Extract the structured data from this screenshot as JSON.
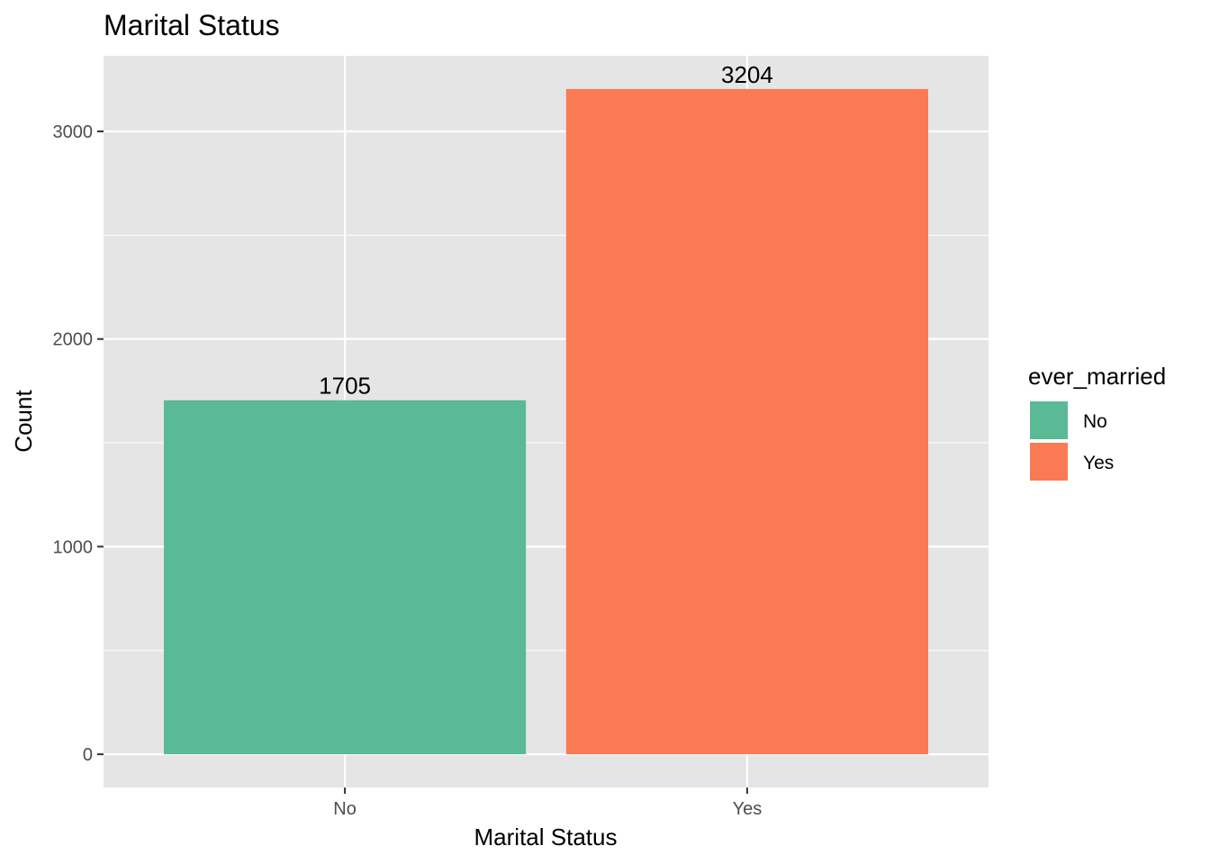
{
  "chart_data": {
    "type": "bar",
    "title": "Marital Status",
    "xlabel": "Marital Status",
    "ylabel": "Count",
    "categories": [
      "No",
      "Yes"
    ],
    "values": [
      1705,
      3204
    ],
    "data_labels": [
      "1705",
      "3204"
    ],
    "ylim": [
      -160,
      3364
    ],
    "yticks": [
      0,
      1000,
      2000,
      3000
    ],
    "ytick_labels": [
      "0",
      "1000",
      "2000",
      "3000"
    ],
    "y_minor_ticks": [
      500,
      1500,
      2500
    ],
    "grid": true,
    "legend": {
      "title": "ever_married",
      "placement": "right",
      "entries": [
        {
          "label": "No",
          "color": "#59BA95"
        },
        {
          "label": "Yes",
          "color": "#FA7A53"
        }
      ]
    },
    "colors": {
      "panel_background": "#E5E5E5",
      "grid": "#FFFFFF",
      "bars": [
        "#59BA95",
        "#FA7A53"
      ]
    }
  }
}
